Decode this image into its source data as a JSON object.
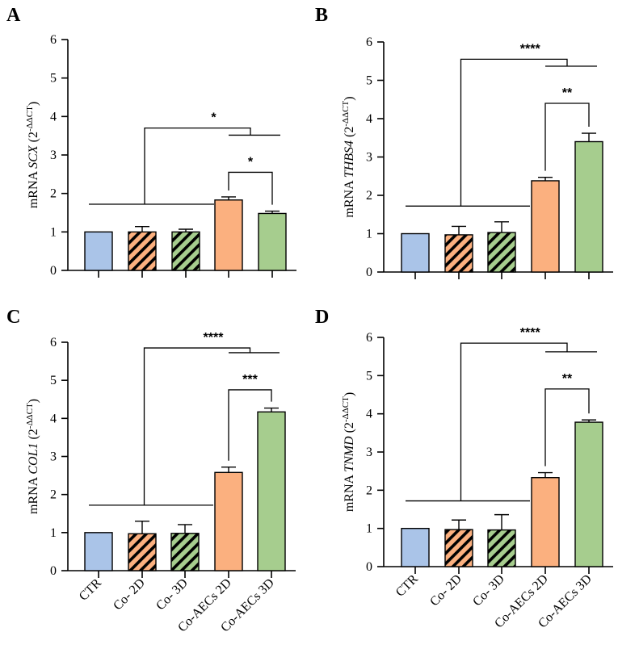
{
  "figure": {
    "category_labels": [
      "CTR",
      "Co- 2D",
      "Co- 3D",
      "Co-AECs 2D",
      "Co-AECs 3D"
    ],
    "colors": {
      "ctr": "#aac4e8",
      "orange": "#fbb07f",
      "green": "#a6cd8e",
      "stroke": "#000000"
    },
    "patterns": [
      "solid",
      "hatch",
      "hatch",
      "solid",
      "solid"
    ]
  },
  "chart_data": [
    {
      "panel": "A",
      "type": "bar",
      "categories": [
        "CTR",
        "Co- 2D",
        "Co- 3D",
        "Co-AECs 2D",
        "Co-AECs 3D"
      ],
      "values": [
        1.0,
        1.0,
        1.0,
        1.83,
        1.48
      ],
      "errors": [
        0.0,
        0.14,
        0.07,
        0.08,
        0.06
      ],
      "ylabel_prefix": "mRNA ",
      "gene": "SCX",
      "ylabel_suffix": " (2",
      "ylabel_sup": "-ΔΔCT",
      "ylabel_close": ")",
      "ylim": [
        0,
        6
      ],
      "yticks": [
        0,
        1,
        2,
        3,
        4,
        5,
        6
      ],
      "show_xlabels": false,
      "brackets": [
        {
          "type": "pair",
          "from": 3,
          "to": 4,
          "y": 2.55,
          "label": "*"
        },
        {
          "type": "group",
          "y": 3.7,
          "label": "*"
        }
      ]
    },
    {
      "panel": "B",
      "type": "bar",
      "categories": [
        "CTR",
        "Co- 2D",
        "Co- 3D",
        "Co-AECs 2D",
        "Co-AECs 3D"
      ],
      "values": [
        1.0,
        0.97,
        1.03,
        2.38,
        3.4
      ],
      "errors": [
        0.0,
        0.22,
        0.28,
        0.09,
        0.22
      ],
      "ylabel_prefix": "mRNA ",
      "gene": "THBS4",
      "ylabel_suffix": " (2",
      "ylabel_sup": "-ΔΔCT",
      "ylabel_close": ")",
      "ylim": [
        0,
        6
      ],
      "yticks": [
        0,
        1,
        2,
        3,
        4,
        5,
        6
      ],
      "show_xlabels": false,
      "brackets": [
        {
          "type": "pair",
          "from": 3,
          "to": 4,
          "y": 4.4,
          "label": "**"
        },
        {
          "type": "group",
          "y": 5.55,
          "label": "****"
        }
      ]
    },
    {
      "panel": "C",
      "type": "bar",
      "categories": [
        "CTR",
        "Co- 2D",
        "Co- 3D",
        "Co-AECs 2D",
        "Co-AECs 3D"
      ],
      "values": [
        1.0,
        0.97,
        0.98,
        2.58,
        4.17
      ],
      "errors": [
        0.0,
        0.33,
        0.23,
        0.14,
        0.1
      ],
      "ylabel_prefix": "mRNA ",
      "gene": "COL1",
      "ylabel_suffix": " (2",
      "ylabel_sup": "-ΔΔCT",
      "ylabel_close": ")",
      "ylim": [
        0,
        6
      ],
      "yticks": [
        0,
        1,
        2,
        3,
        4,
        5,
        6
      ],
      "show_xlabels": true,
      "brackets": [
        {
          "type": "pair",
          "from": 3,
          "to": 4,
          "y": 4.75,
          "label": "***"
        },
        {
          "type": "group",
          "y": 5.85,
          "label": "****"
        }
      ]
    },
    {
      "panel": "D",
      "type": "bar",
      "categories": [
        "CTR",
        "Co- 2D",
        "Co- 3D",
        "Co-AECs 2D",
        "Co-AECs 3D"
      ],
      "values": [
        1.0,
        0.97,
        0.96,
        2.33,
        3.78
      ],
      "errors": [
        0.0,
        0.25,
        0.4,
        0.13,
        0.06
      ],
      "ylabel_prefix": "mRNA ",
      "gene": "TNMD",
      "ylabel_suffix": " (2",
      "ylabel_sup": "-ΔΔCT",
      "ylabel_close": ")",
      "ylim": [
        0,
        6
      ],
      "yticks": [
        0,
        1,
        2,
        3,
        4,
        5,
        6
      ],
      "show_xlabels": true,
      "brackets": [
        {
          "type": "pair",
          "from": 3,
          "to": 4,
          "y": 4.65,
          "label": "**"
        },
        {
          "type": "group",
          "y": 5.85,
          "label": "****"
        }
      ]
    }
  ]
}
